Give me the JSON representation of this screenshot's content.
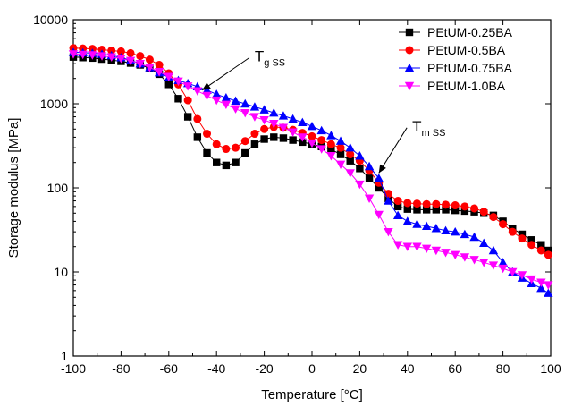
{
  "chart_data": {
    "type": "line",
    "title": "",
    "xlabel": "Temperature [°C]",
    "ylabel": "Storage modulus [MPa]",
    "xlim": [
      -100,
      100
    ],
    "ylim": [
      1,
      10000
    ],
    "yscale": "log",
    "xticks": [
      -100,
      -80,
      -60,
      -40,
      -20,
      0,
      20,
      40,
      60,
      80,
      100
    ],
    "yticks": [
      1,
      10,
      100,
      1000,
      10000
    ],
    "xtick_labels": [
      "-100",
      "-80",
      "-60",
      "-40",
      "-20",
      "0",
      "20",
      "40",
      "60",
      "80",
      "100"
    ],
    "ytick_labels": [
      "1",
      "10",
      "100",
      "1000",
      "10000"
    ],
    "grid": false,
    "legend_position": "top-right",
    "series": [
      {
        "name": "PEtUM-0.25BA",
        "color": "#000000",
        "marker": "square",
        "x": [
          -100,
          -96,
          -92,
          -88,
          -84,
          -80,
          -76,
          -72,
          -68,
          -64,
          -60,
          -56,
          -52,
          -48,
          -44,
          -40,
          -36,
          -32,
          -28,
          -24,
          -20,
          -16,
          -12,
          -8,
          -4,
          0,
          4,
          8,
          12,
          16,
          20,
          24,
          28,
          32,
          36,
          40,
          44,
          48,
          52,
          56,
          60,
          64,
          68,
          72,
          76,
          80,
          84,
          88,
          92,
          96,
          99
        ],
        "y": [
          3600,
          3550,
          3500,
          3400,
          3300,
          3200,
          3050,
          2900,
          2650,
          2250,
          1700,
          1150,
          700,
          400,
          260,
          200,
          185,
          200,
          260,
          330,
          380,
          400,
          390,
          370,
          350,
          330,
          310,
          285,
          250,
          210,
          170,
          130,
          100,
          75,
          60,
          56,
          55,
          55,
          55,
          55,
          54,
          53,
          52,
          50,
          47,
          40,
          33,
          28,
          24,
          21,
          18
        ]
      },
      {
        "name": "PEtUM-0.5BA",
        "color": "#ff0000",
        "marker": "circle",
        "x": [
          -100,
          -96,
          -92,
          -88,
          -84,
          -80,
          -76,
          -72,
          -68,
          -64,
          -60,
          -56,
          -52,
          -48,
          -44,
          -40,
          -36,
          -32,
          -28,
          -24,
          -20,
          -16,
          -12,
          -8,
          -4,
          0,
          4,
          8,
          12,
          16,
          20,
          24,
          28,
          32,
          36,
          40,
          44,
          48,
          52,
          56,
          60,
          64,
          68,
          72,
          76,
          80,
          84,
          88,
          92,
          96,
          99
        ],
        "y": [
          4600,
          4550,
          4500,
          4400,
          4300,
          4200,
          4000,
          3700,
          3350,
          2900,
          2300,
          1700,
          1100,
          660,
          440,
          330,
          290,
          300,
          360,
          440,
          500,
          530,
          520,
          490,
          450,
          410,
          370,
          330,
          300,
          250,
          210,
          160,
          115,
          85,
          70,
          66,
          65,
          64,
          64,
          63,
          62,
          60,
          57,
          52,
          45,
          37,
          30,
          25,
          21,
          18,
          16
        ]
      },
      {
        "name": "PEtUM-0.75BA",
        "color": "#0000ff",
        "marker": "triangle-up",
        "x": [
          -100,
          -96,
          -92,
          -88,
          -84,
          -80,
          -76,
          -72,
          -68,
          -64,
          -60,
          -56,
          -52,
          -48,
          -44,
          -40,
          -36,
          -32,
          -28,
          -24,
          -20,
          -16,
          -12,
          -8,
          -4,
          0,
          4,
          8,
          12,
          16,
          20,
          24,
          28,
          32,
          36,
          40,
          44,
          48,
          52,
          56,
          60,
          64,
          68,
          72,
          76,
          80,
          84,
          88,
          92,
          96,
          99
        ],
        "y": [
          4100,
          4050,
          4000,
          3900,
          3750,
          3550,
          3300,
          3000,
          2700,
          2350,
          2050,
          1900,
          1750,
          1600,
          1450,
          1300,
          1180,
          1080,
          1000,
          920,
          850,
          780,
          720,
          660,
          600,
          540,
          480,
          420,
          360,
          300,
          240,
          180,
          130,
          70,
          47,
          40,
          37,
          35,
          33,
          31,
          30,
          28,
          26,
          22,
          18,
          13,
          10,
          8.5,
          7.3,
          6.4,
          5.6
        ]
      },
      {
        "name": "PEtUM-1.0BA",
        "color": "#ff00ff",
        "marker": "triangle-down",
        "x": [
          -100,
          -96,
          -92,
          -88,
          -84,
          -80,
          -76,
          -72,
          -68,
          -64,
          -60,
          -56,
          -52,
          -48,
          -44,
          -40,
          -36,
          -32,
          -28,
          -24,
          -20,
          -16,
          -12,
          -8,
          -4,
          0,
          4,
          8,
          12,
          16,
          20,
          24,
          28,
          32,
          36,
          40,
          44,
          48,
          52,
          56,
          60,
          64,
          68,
          72,
          76,
          80,
          84,
          88,
          92,
          96,
          99
        ],
        "y": [
          3900,
          3850,
          3800,
          3700,
          3600,
          3450,
          3250,
          3000,
          2700,
          2400,
          2100,
          1850,
          1620,
          1420,
          1250,
          1100,
          980,
          870,
          780,
          700,
          640,
          580,
          520,
          460,
          400,
          340,
          290,
          240,
          190,
          150,
          110,
          75,
          48,
          30,
          21,
          20,
          20,
          19,
          18,
          17,
          16,
          15,
          14,
          13,
          12,
          11,
          10,
          9.2,
          8.2,
          7.5,
          7
        ]
      }
    ],
    "annotations": [
      {
        "main": "T",
        "sub": "g SS",
        "x": -24,
        "y": 3200,
        "arrow_to_x": -46,
        "arrow_to_y": 1450
      },
      {
        "main": "T",
        "sub": "m SS",
        "x": 42,
        "y": 470,
        "arrow_to_x": 28,
        "arrow_to_y": 150
      }
    ]
  }
}
